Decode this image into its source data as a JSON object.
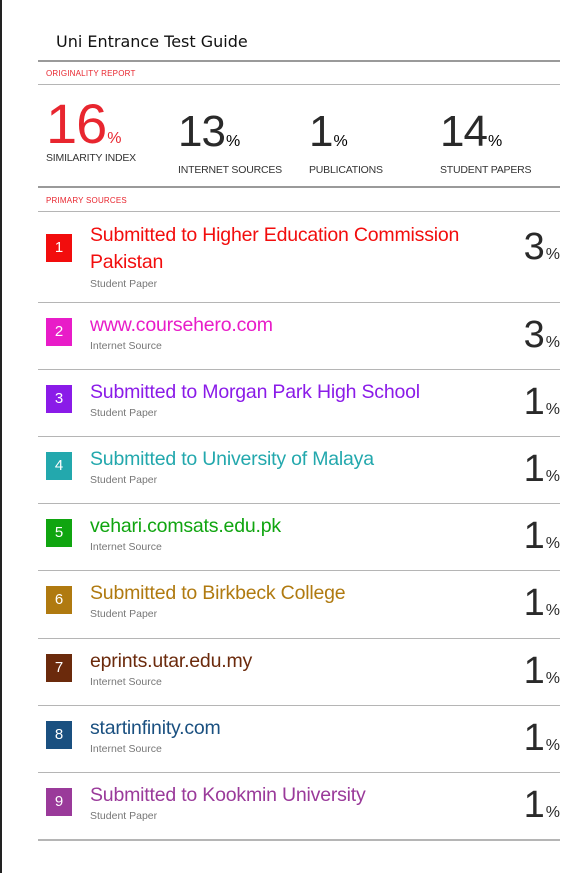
{
  "document": {
    "title": "Uni Entrance Test Guide"
  },
  "report": {
    "originality_label": "ORIGINALITY REPORT",
    "primary_sources_label": "PRIMARY SOURCES",
    "percent_sign": "%",
    "stats": [
      {
        "value": "16",
        "label": "SIMILARITY INDEX"
      },
      {
        "value": "13",
        "label": "INTERNET SOURCES"
      },
      {
        "value": "1",
        "label": "PUBLICATIONS"
      },
      {
        "value": "14",
        "label": "STUDENT PAPERS"
      }
    ],
    "sources": [
      {
        "rank": "1",
        "title": "Submitted to Higher Education Commission Pakistan",
        "type": "Student Paper",
        "percent": "3",
        "color": "#f20d0d"
      },
      {
        "rank": "2",
        "title": "www.coursehero.com",
        "type": "Internet Source",
        "percent": "3",
        "color": "#e81cc8"
      },
      {
        "rank": "3",
        "title": "Submitted to Morgan Park High School",
        "type": "Student Paper",
        "percent": "1",
        "color": "#8a1be8"
      },
      {
        "rank": "4",
        "title": "Submitted to University of Malaya",
        "type": "Student Paper",
        "percent": "1",
        "color": "#23a8ad"
      },
      {
        "rank": "5",
        "title": "vehari.comsats.edu.pk",
        "type": "Internet Source",
        "percent": "1",
        "color": "#10a510"
      },
      {
        "rank": "6",
        "title": "Submitted to Birkbeck College",
        "type": "Student Paper",
        "percent": "1",
        "color": "#b07a10"
      },
      {
        "rank": "7",
        "title": "eprints.utar.edu.my",
        "type": "Internet Source",
        "percent": "1",
        "color": "#6b2a0c"
      },
      {
        "rank": "8",
        "title": "startinfinity.com",
        "type": "Internet Source",
        "percent": "1",
        "color": "#1a5080"
      },
      {
        "rank": "9",
        "title": "Submitted to Kookmin University",
        "type": "Student Paper",
        "percent": "1",
        "color": "#9a3a9a"
      }
    ]
  }
}
